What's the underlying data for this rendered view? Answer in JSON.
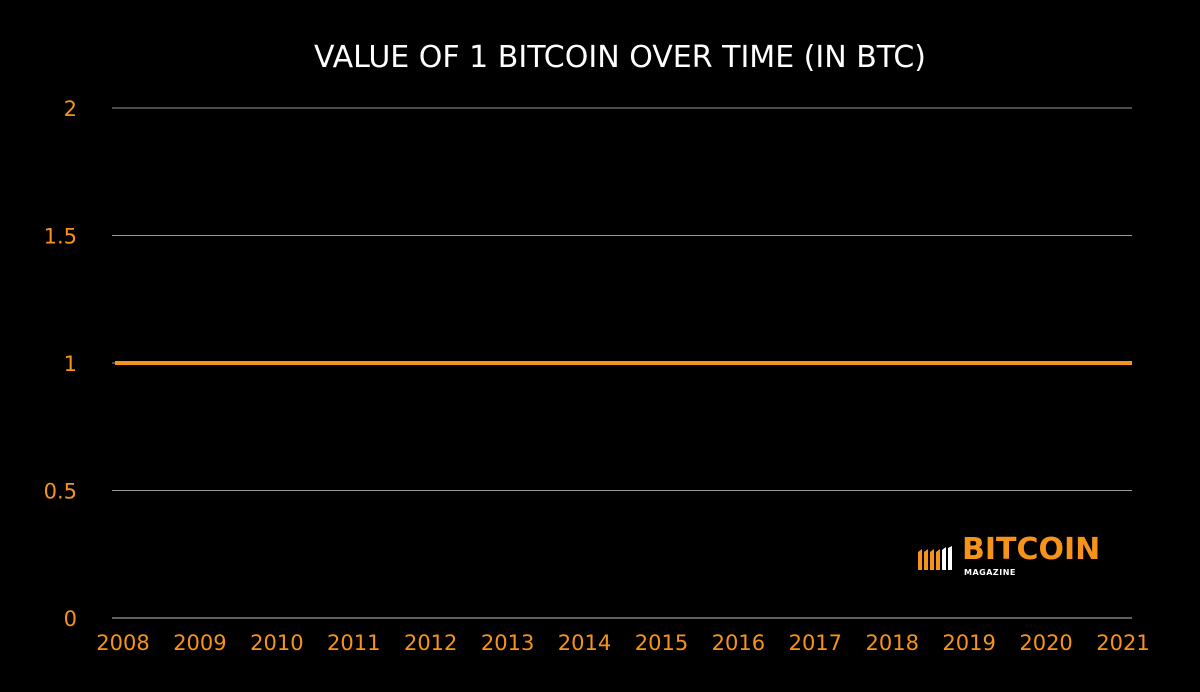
{
  "chart_data": {
    "type": "line",
    "title": "VALUE OF 1 BITCOIN OVER TIME (IN BTC)",
    "xlabel": "",
    "ylabel": "",
    "categories": [
      "2008",
      "2009",
      "2010",
      "2011",
      "2012",
      "2013",
      "2014",
      "2015",
      "2016",
      "2017",
      "2018",
      "2019",
      "2020",
      "2021"
    ],
    "ylim": [
      0,
      2
    ],
    "yticks": [
      "0",
      "0.5",
      "1",
      "1.5",
      "2"
    ],
    "series": [
      {
        "values": [
          1,
          1,
          1,
          1,
          1,
          1,
          1,
          1,
          1,
          1,
          1,
          1,
          1,
          1
        ]
      }
    ],
    "grid": true,
    "colors": {
      "background": "#000000",
      "line": "#f7931a",
      "grid": "#ffffff",
      "tick_label": "#f7931a",
      "title": "#ffffff"
    }
  },
  "brand": {
    "name": "BITCOIN",
    "subtitle": "MAGAZINE",
    "icon": "bitcoin-magazine-logo-icon"
  }
}
